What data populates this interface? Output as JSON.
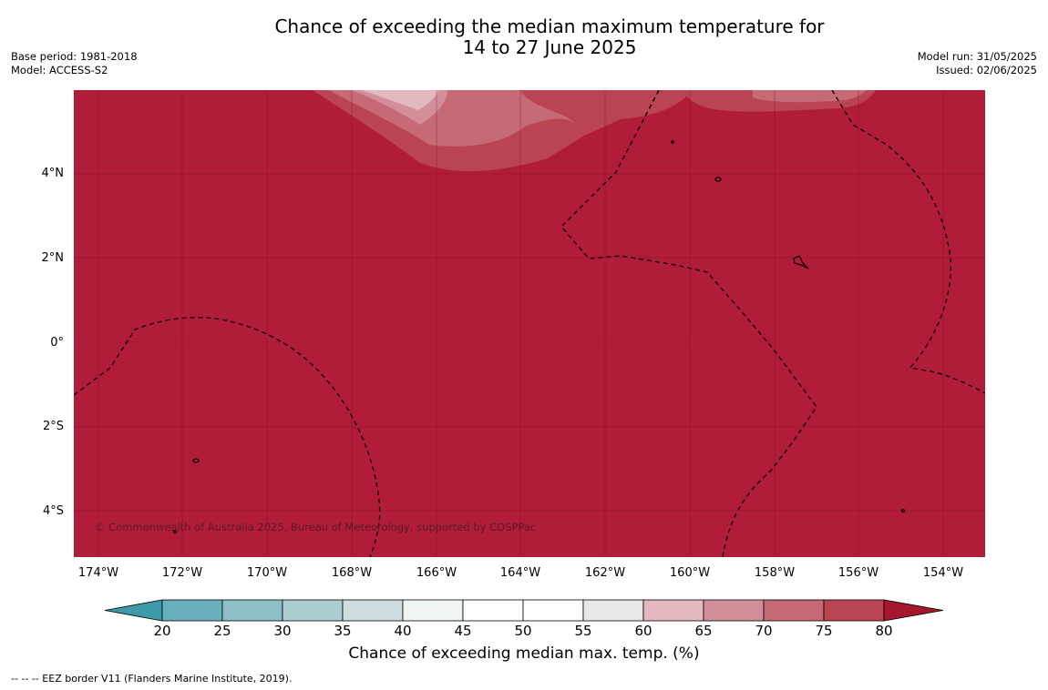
{
  "title": {
    "line1": "Chance of exceeding the median maximum temperature for",
    "line2": "14 to 27 June 2025"
  },
  "meta_left": {
    "base_period": "Base period: 1981-2018",
    "model": "Model: ACCESS-S2"
  },
  "meta_right": {
    "model_run": "Model run: 31/05/2025",
    "issued": "Issued: 02/06/2025"
  },
  "map": {
    "background_color": "#b11d38",
    "lon_labels": [
      "174°W",
      "172°W",
      "170°W",
      "168°W",
      "166°W",
      "164°W",
      "162°W",
      "160°W",
      "158°W",
      "156°W",
      "154°W"
    ],
    "lat_labels": [
      "4°N",
      "2°N",
      "0°",
      "2°S",
      "4°S"
    ],
    "copyright": "© Commonwealth of Australia 2025, Bureau of Meteorology, supported by COSPPac"
  },
  "colorbar": {
    "ticks": [
      "20",
      "25",
      "30",
      "35",
      "40",
      "45",
      "50",
      "55",
      "60",
      "65",
      "70",
      "75",
      "80"
    ],
    "colors": [
      "#6aafbd",
      "#8ebec8",
      "#adcdd2",
      "#cfdde0",
      "#eef4f4",
      "#ffffff",
      "#ffffff",
      "#e8e8e8",
      "#e3b8be",
      "#d38f99",
      "#c66a75",
      "#bb4452"
    ],
    "under_color": "#3d9aa8",
    "over_color": "#a5172f",
    "title": "Chance of exceeding median max. temp. (%)"
  },
  "footnote": "-- -- -- EEZ border V11 (Flanders Marine Institute, 2019)."
}
